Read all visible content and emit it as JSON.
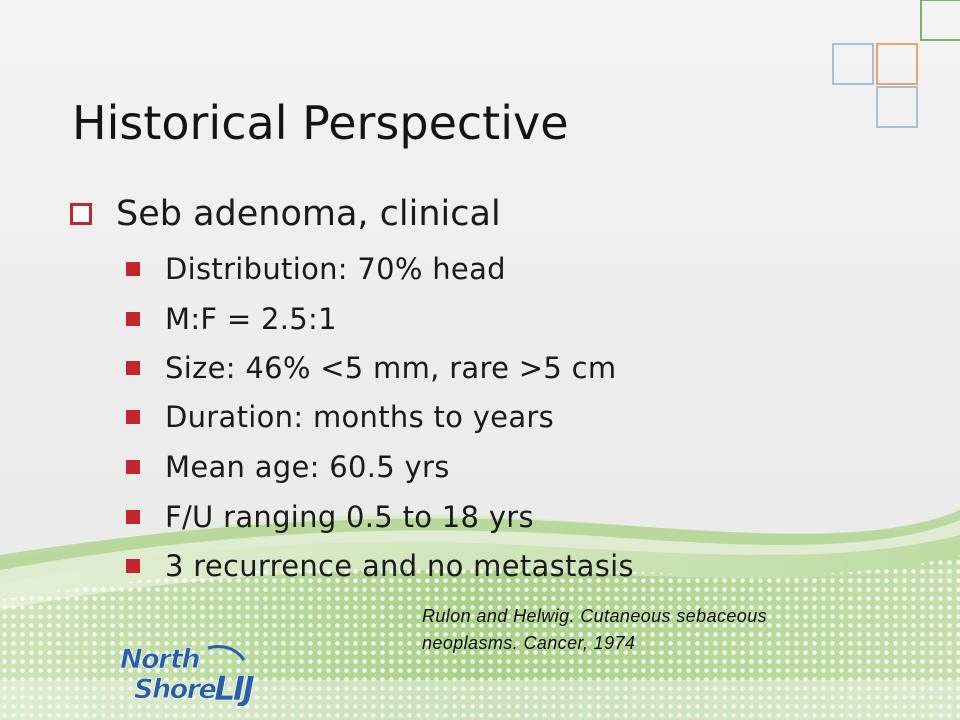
{
  "slide": {
    "title": "Historical Perspective",
    "main_bullet": "Seb adenoma, clinical",
    "sub_bullets": [
      "Distribution: 70% head",
      "M:F = 2.5:1",
      "Size: 46% <5 mm, rare >5 cm",
      "Duration: months to years",
      "Mean age: 60.5 yrs",
      "F/U ranging 0.5 to 18 yrs",
      "3 recurrence and no metastasis"
    ],
    "citation_line1": "Rulon and Helwig. Cutaneous sebaceous",
    "citation_line2": "neoplasms. Cancer, 1974"
  },
  "logo": {
    "word1": "North",
    "word2": "Shore",
    "word3": "LIJ"
  },
  "colors": {
    "bullet_red": "#c4262e",
    "logo_blue": "#2a5ea8",
    "wave_green": "#8fc06a",
    "square_blue": "#a9bfd8",
    "square_orange": "#e7a370",
    "square_green": "#7fb069"
  }
}
